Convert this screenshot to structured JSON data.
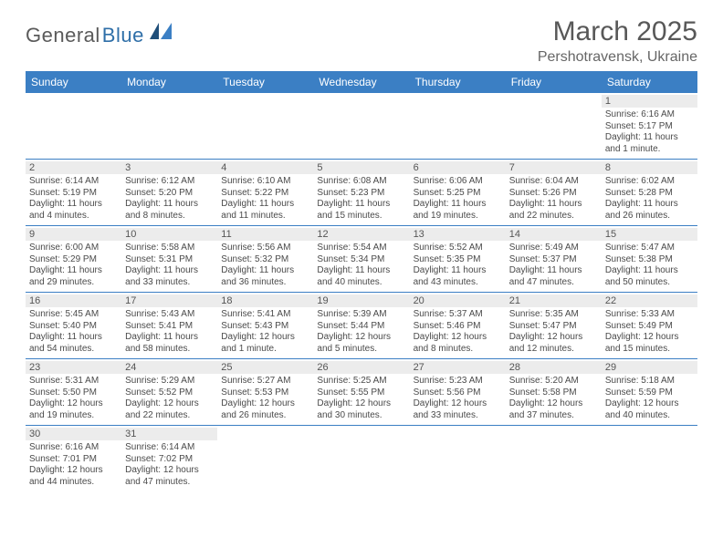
{
  "logo": {
    "part1": "General",
    "part2": "Blue"
  },
  "title": "March 2025",
  "location": "Pershotravensk, Ukraine",
  "colors": {
    "header_bg": "#3b7fc4",
    "header_text": "#ffffff",
    "daynum_bg": "#ececec",
    "cell_border": "#3b7fc4",
    "title_color": "#585858",
    "body_text": "#4a4a4a",
    "logo_dark": "#5a5a5a",
    "logo_blue": "#2f6fa8"
  },
  "day_headers": [
    "Sunday",
    "Monday",
    "Tuesday",
    "Wednesday",
    "Thursday",
    "Friday",
    "Saturday"
  ],
  "weeks": [
    [
      {
        "n": "",
        "lines": []
      },
      {
        "n": "",
        "lines": []
      },
      {
        "n": "",
        "lines": []
      },
      {
        "n": "",
        "lines": []
      },
      {
        "n": "",
        "lines": []
      },
      {
        "n": "",
        "lines": []
      },
      {
        "n": "1",
        "lines": [
          "Sunrise: 6:16 AM",
          "Sunset: 5:17 PM",
          "Daylight: 11 hours",
          "and 1 minute."
        ]
      }
    ],
    [
      {
        "n": "2",
        "lines": [
          "Sunrise: 6:14 AM",
          "Sunset: 5:19 PM",
          "Daylight: 11 hours",
          "and 4 minutes."
        ]
      },
      {
        "n": "3",
        "lines": [
          "Sunrise: 6:12 AM",
          "Sunset: 5:20 PM",
          "Daylight: 11 hours",
          "and 8 minutes."
        ]
      },
      {
        "n": "4",
        "lines": [
          "Sunrise: 6:10 AM",
          "Sunset: 5:22 PM",
          "Daylight: 11 hours",
          "and 11 minutes."
        ]
      },
      {
        "n": "5",
        "lines": [
          "Sunrise: 6:08 AM",
          "Sunset: 5:23 PM",
          "Daylight: 11 hours",
          "and 15 minutes."
        ]
      },
      {
        "n": "6",
        "lines": [
          "Sunrise: 6:06 AM",
          "Sunset: 5:25 PM",
          "Daylight: 11 hours",
          "and 19 minutes."
        ]
      },
      {
        "n": "7",
        "lines": [
          "Sunrise: 6:04 AM",
          "Sunset: 5:26 PM",
          "Daylight: 11 hours",
          "and 22 minutes."
        ]
      },
      {
        "n": "8",
        "lines": [
          "Sunrise: 6:02 AM",
          "Sunset: 5:28 PM",
          "Daylight: 11 hours",
          "and 26 minutes."
        ]
      }
    ],
    [
      {
        "n": "9",
        "lines": [
          "Sunrise: 6:00 AM",
          "Sunset: 5:29 PM",
          "Daylight: 11 hours",
          "and 29 minutes."
        ]
      },
      {
        "n": "10",
        "lines": [
          "Sunrise: 5:58 AM",
          "Sunset: 5:31 PM",
          "Daylight: 11 hours",
          "and 33 minutes."
        ]
      },
      {
        "n": "11",
        "lines": [
          "Sunrise: 5:56 AM",
          "Sunset: 5:32 PM",
          "Daylight: 11 hours",
          "and 36 minutes."
        ]
      },
      {
        "n": "12",
        "lines": [
          "Sunrise: 5:54 AM",
          "Sunset: 5:34 PM",
          "Daylight: 11 hours",
          "and 40 minutes."
        ]
      },
      {
        "n": "13",
        "lines": [
          "Sunrise: 5:52 AM",
          "Sunset: 5:35 PM",
          "Daylight: 11 hours",
          "and 43 minutes."
        ]
      },
      {
        "n": "14",
        "lines": [
          "Sunrise: 5:49 AM",
          "Sunset: 5:37 PM",
          "Daylight: 11 hours",
          "and 47 minutes."
        ]
      },
      {
        "n": "15",
        "lines": [
          "Sunrise: 5:47 AM",
          "Sunset: 5:38 PM",
          "Daylight: 11 hours",
          "and 50 minutes."
        ]
      }
    ],
    [
      {
        "n": "16",
        "lines": [
          "Sunrise: 5:45 AM",
          "Sunset: 5:40 PM",
          "Daylight: 11 hours",
          "and 54 minutes."
        ]
      },
      {
        "n": "17",
        "lines": [
          "Sunrise: 5:43 AM",
          "Sunset: 5:41 PM",
          "Daylight: 11 hours",
          "and 58 minutes."
        ]
      },
      {
        "n": "18",
        "lines": [
          "Sunrise: 5:41 AM",
          "Sunset: 5:43 PM",
          "Daylight: 12 hours",
          "and 1 minute."
        ]
      },
      {
        "n": "19",
        "lines": [
          "Sunrise: 5:39 AM",
          "Sunset: 5:44 PM",
          "Daylight: 12 hours",
          "and 5 minutes."
        ]
      },
      {
        "n": "20",
        "lines": [
          "Sunrise: 5:37 AM",
          "Sunset: 5:46 PM",
          "Daylight: 12 hours",
          "and 8 minutes."
        ]
      },
      {
        "n": "21",
        "lines": [
          "Sunrise: 5:35 AM",
          "Sunset: 5:47 PM",
          "Daylight: 12 hours",
          "and 12 minutes."
        ]
      },
      {
        "n": "22",
        "lines": [
          "Sunrise: 5:33 AM",
          "Sunset: 5:49 PM",
          "Daylight: 12 hours",
          "and 15 minutes."
        ]
      }
    ],
    [
      {
        "n": "23",
        "lines": [
          "Sunrise: 5:31 AM",
          "Sunset: 5:50 PM",
          "Daylight: 12 hours",
          "and 19 minutes."
        ]
      },
      {
        "n": "24",
        "lines": [
          "Sunrise: 5:29 AM",
          "Sunset: 5:52 PM",
          "Daylight: 12 hours",
          "and 22 minutes."
        ]
      },
      {
        "n": "25",
        "lines": [
          "Sunrise: 5:27 AM",
          "Sunset: 5:53 PM",
          "Daylight: 12 hours",
          "and 26 minutes."
        ]
      },
      {
        "n": "26",
        "lines": [
          "Sunrise: 5:25 AM",
          "Sunset: 5:55 PM",
          "Daylight: 12 hours",
          "and 30 minutes."
        ]
      },
      {
        "n": "27",
        "lines": [
          "Sunrise: 5:23 AM",
          "Sunset: 5:56 PM",
          "Daylight: 12 hours",
          "and 33 minutes."
        ]
      },
      {
        "n": "28",
        "lines": [
          "Sunrise: 5:20 AM",
          "Sunset: 5:58 PM",
          "Daylight: 12 hours",
          "and 37 minutes."
        ]
      },
      {
        "n": "29",
        "lines": [
          "Sunrise: 5:18 AM",
          "Sunset: 5:59 PM",
          "Daylight: 12 hours",
          "and 40 minutes."
        ]
      }
    ],
    [
      {
        "n": "30",
        "lines": [
          "Sunrise: 6:16 AM",
          "Sunset: 7:01 PM",
          "Daylight: 12 hours",
          "and 44 minutes."
        ]
      },
      {
        "n": "31",
        "lines": [
          "Sunrise: 6:14 AM",
          "Sunset: 7:02 PM",
          "Daylight: 12 hours",
          "and 47 minutes."
        ]
      },
      {
        "n": "",
        "lines": []
      },
      {
        "n": "",
        "lines": []
      },
      {
        "n": "",
        "lines": []
      },
      {
        "n": "",
        "lines": []
      },
      {
        "n": "",
        "lines": []
      }
    ]
  ]
}
